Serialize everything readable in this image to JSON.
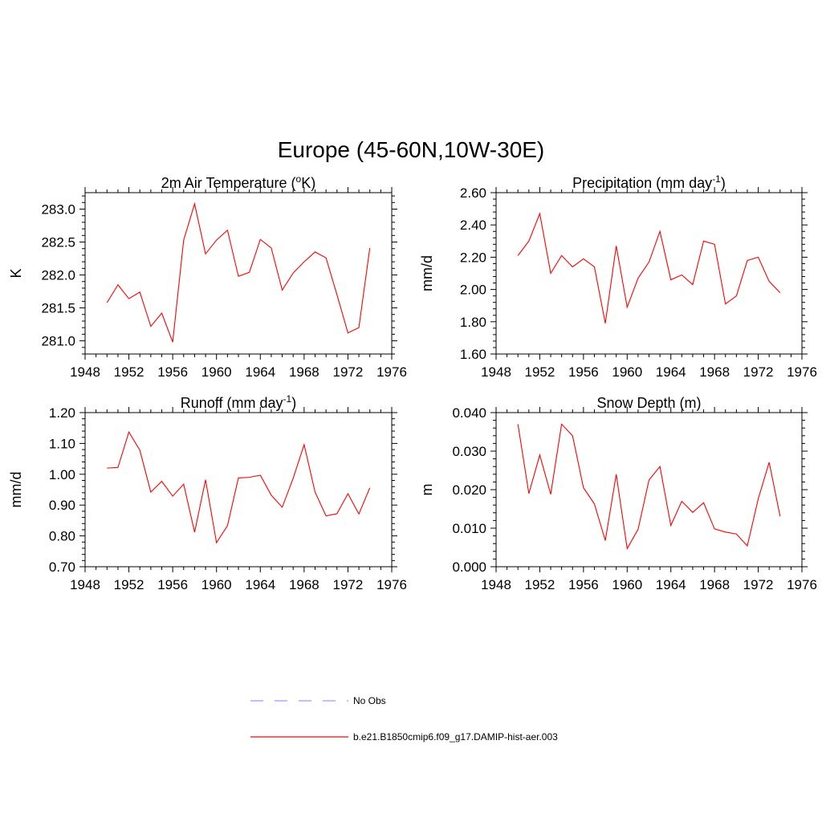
{
  "figure": {
    "title": "Europe (45-60N,10W-30E)"
  },
  "colors": {
    "model_line": "#ff0000",
    "obs_line": "#9999ff",
    "axis": "#000000"
  },
  "legend": {
    "entries": [
      {
        "label": "No Obs",
        "style": "dashed",
        "color": "#9999ff"
      },
      {
        "label": "b.e21.B1850cmip6.f09_g17.DAMIP-hist-aer.003",
        "style": "solid",
        "color": "#ff0000"
      }
    ]
  },
  "chart_data": [
    {
      "type": "line",
      "title": "2m Air Temperature (oK)",
      "title_main": "2m Air Temperature (",
      "title_sup": "o",
      "title_end": "K)",
      "xlabel": "",
      "ylabel": "K",
      "xlim": [
        1948,
        1976
      ],
      "ylim": [
        280.8,
        283.25
      ],
      "xticks": [
        1948,
        1952,
        1956,
        1960,
        1964,
        1968,
        1972,
        1976
      ],
      "yticks": [
        281.0,
        281.5,
        282.0,
        282.5,
        283.0
      ],
      "ytick_labels": [
        "281.0",
        "281.5",
        "282.0",
        "282.5",
        "283.0"
      ],
      "x": [
        1950,
        1951,
        1952,
        1953,
        1954,
        1955,
        1956,
        1957,
        1958,
        1959,
        1960,
        1961,
        1962,
        1963,
        1964,
        1965,
        1966,
        1967,
        1968,
        1969,
        1970,
        1971,
        1972,
        1973,
        1974
      ],
      "series": [
        {
          "values": [
            281.58,
            281.85,
            281.64,
            281.74,
            281.22,
            281.42,
            280.98,
            282.53,
            283.08,
            282.32,
            282.53,
            282.68,
            281.98,
            282.04,
            282.54,
            282.41,
            281.77,
            282.03,
            282.2,
            282.35,
            282.26,
            281.7,
            281.12,
            281.2,
            282.41
          ]
        }
      ]
    },
    {
      "type": "line",
      "title": "Precipitation (mm day-1)",
      "title_main": "Precipitation (mm day",
      "title_sup": "-1",
      "title_end": ")",
      "xlabel": "",
      "ylabel": "mm/d",
      "xlim": [
        1948,
        1976
      ],
      "ylim": [
        1.6,
        2.6
      ],
      "xticks": [
        1948,
        1952,
        1956,
        1960,
        1964,
        1968,
        1972,
        1976
      ],
      "yticks": [
        1.6,
        1.8,
        2.0,
        2.2,
        2.4,
        2.6
      ],
      "ytick_labels": [
        "1.60",
        "1.80",
        "2.00",
        "2.20",
        "2.40",
        "2.60"
      ],
      "x": [
        1950,
        1951,
        1952,
        1953,
        1954,
        1955,
        1956,
        1957,
        1958,
        1959,
        1960,
        1961,
        1962,
        1963,
        1964,
        1965,
        1966,
        1967,
        1968,
        1969,
        1970,
        1971,
        1972,
        1973,
        1974
      ],
      "series": [
        {
          "values": [
            2.21,
            2.3,
            2.47,
            2.1,
            2.21,
            2.14,
            2.19,
            2.14,
            1.79,
            2.27,
            1.89,
            2.07,
            2.17,
            2.36,
            2.06,
            2.09,
            2.03,
            2.3,
            2.28,
            1.91,
            1.96,
            2.18,
            2.2,
            2.05,
            1.98
          ]
        }
      ]
    },
    {
      "type": "line",
      "title": "Runoff (mm day-1)",
      "title_main": "Runoff (mm day",
      "title_sup": "-1",
      "title_end": ")",
      "xlabel": "",
      "ylabel": "mm/d",
      "xlim": [
        1948,
        1976
      ],
      "ylim": [
        0.7,
        1.2
      ],
      "xticks": [
        1948,
        1952,
        1956,
        1960,
        1964,
        1968,
        1972,
        1976
      ],
      "yticks": [
        0.7,
        0.8,
        0.9,
        1.0,
        1.1,
        1.2
      ],
      "ytick_labels": [
        "0.70",
        "0.80",
        "0.90",
        "1.00",
        "1.10",
        "1.20"
      ],
      "x": [
        1950,
        1951,
        1952,
        1953,
        1954,
        1955,
        1956,
        1957,
        1958,
        1959,
        1960,
        1961,
        1962,
        1963,
        1964,
        1965,
        1966,
        1967,
        1968,
        1969,
        1970,
        1971,
        1972,
        1973,
        1974
      ],
      "series": [
        {
          "values": [
            1.02,
            1.022,
            1.137,
            1.078,
            0.942,
            0.977,
            0.929,
            0.968,
            0.812,
            0.982,
            0.778,
            0.833,
            0.988,
            0.99,
            0.997,
            0.932,
            0.893,
            0.987,
            1.096,
            0.942,
            0.865,
            0.872,
            0.937,
            0.871,
            0.956
          ]
        }
      ]
    },
    {
      "type": "line",
      "title": "Snow Depth (m)",
      "title_main": "Snow Depth (m)",
      "title_sup": "",
      "title_end": "",
      "xlabel": "",
      "ylabel": "m",
      "xlim": [
        1948,
        1976
      ],
      "ylim": [
        0.0,
        0.04
      ],
      "xticks": [
        1948,
        1952,
        1956,
        1960,
        1964,
        1968,
        1972,
        1976
      ],
      "yticks": [
        0.0,
        0.01,
        0.02,
        0.03,
        0.04
      ],
      "ytick_labels": [
        "0.000",
        "0.010",
        "0.020",
        "0.030",
        "0.040"
      ],
      "x": [
        1950,
        1951,
        1952,
        1953,
        1954,
        1955,
        1956,
        1957,
        1958,
        1959,
        1960,
        1961,
        1962,
        1963,
        1964,
        1965,
        1966,
        1967,
        1968,
        1969,
        1970,
        1971,
        1972,
        1973,
        1974
      ],
      "series": [
        {
          "values": [
            0.037,
            0.019,
            0.029,
            0.0188,
            0.037,
            0.034,
            0.0205,
            0.0163,
            0.0068,
            0.024,
            0.0047,
            0.0097,
            0.0225,
            0.026,
            0.0107,
            0.017,
            0.0141,
            0.0166,
            0.0098,
            0.009,
            0.0085,
            0.0054,
            0.0176,
            0.0271,
            0.0131
          ]
        }
      ]
    }
  ]
}
